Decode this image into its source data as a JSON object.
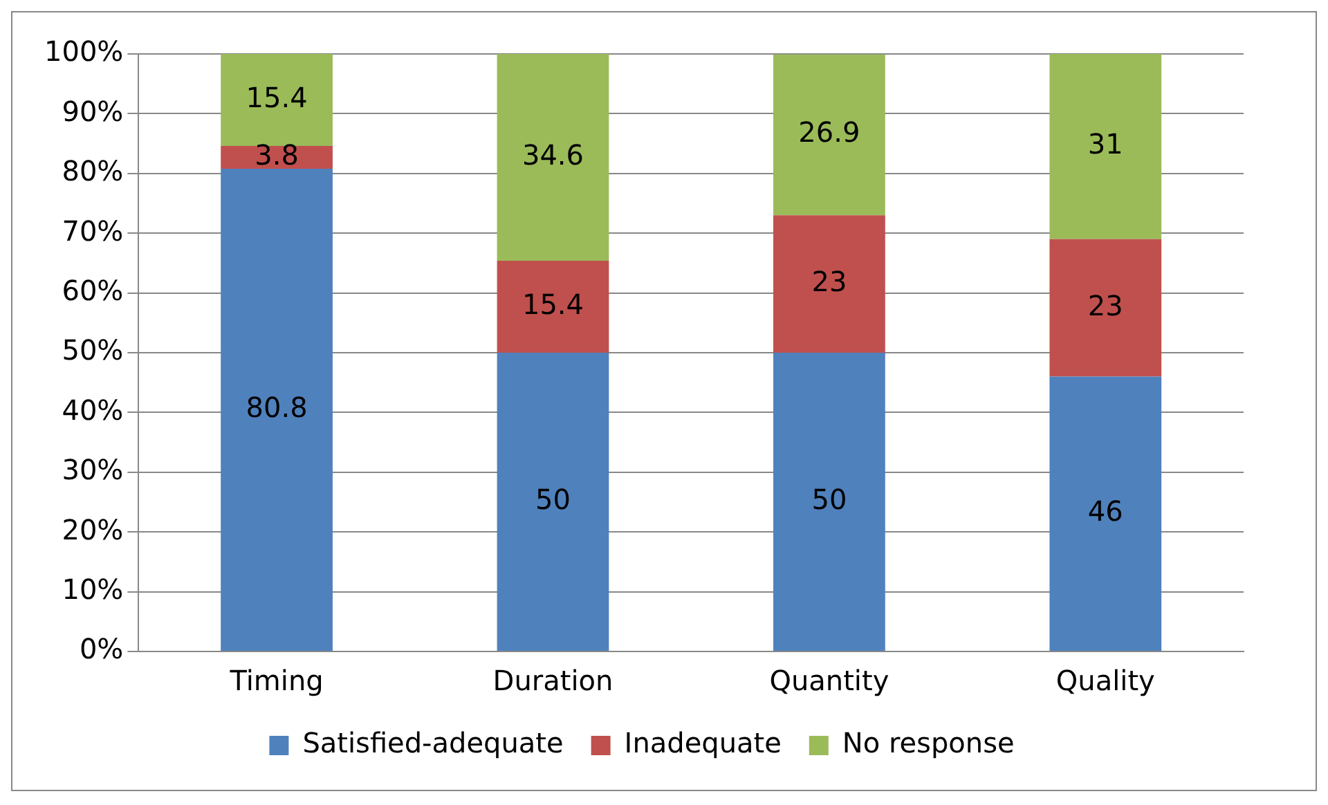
{
  "chart_data": {
    "type": "bar",
    "stacked": true,
    "categories": [
      "Timing",
      "Duration",
      "Quantity",
      "Quality"
    ],
    "series": [
      {
        "name": "Satisfied-adequate",
        "color": "#4f81bd",
        "values": [
          80.8,
          50,
          50,
          46
        ]
      },
      {
        "name": "Inadequate",
        "color": "#c0504d",
        "values": [
          3.8,
          15.4,
          23,
          23
        ]
      },
      {
        "name": "No response",
        "color": "#9bbb59",
        "values": [
          15.4,
          34.6,
          26.9,
          31
        ]
      }
    ],
    "ylim": [
      0,
      100
    ],
    "yticks": [
      {
        "value": 0,
        "label": "0%"
      },
      {
        "value": 10,
        "label": "10%"
      },
      {
        "value": 20,
        "label": "20%"
      },
      {
        "value": 30,
        "label": "30%"
      },
      {
        "value": 40,
        "label": "40%"
      },
      {
        "value": 50,
        "label": "50%"
      },
      {
        "value": 60,
        "label": "60%"
      },
      {
        "value": 70,
        "label": "70%"
      },
      {
        "value": 80,
        "label": "80%"
      },
      {
        "value": 90,
        "label": "90%"
      },
      {
        "value": 100,
        "label": "100%"
      }
    ],
    "grid": "y",
    "legend": "bottom",
    "data_labels": true
  }
}
